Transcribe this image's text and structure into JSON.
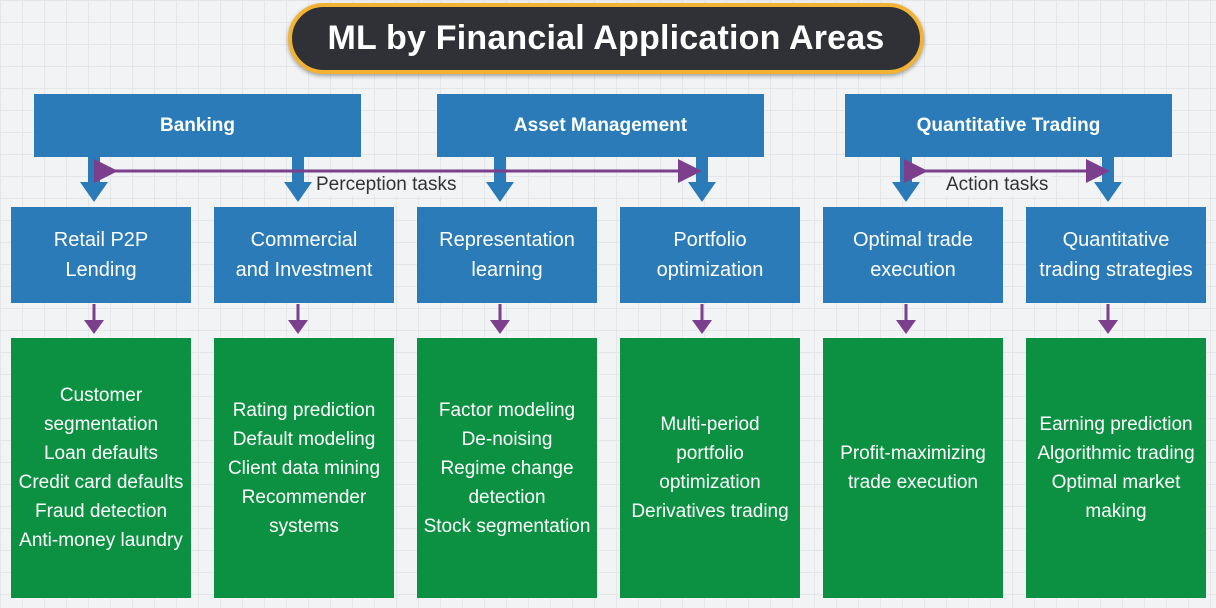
{
  "title": "ML by Financial Application Areas",
  "categories": [
    "Banking",
    "Asset Management",
    "Quantitative Trading"
  ],
  "task_labels": {
    "perception": "Perception tasks",
    "action": "Action tasks"
  },
  "subcategories": [
    [
      "Retail P2P",
      "Lending"
    ],
    [
      "Commercial",
      "and Investment"
    ],
    [
      "Representation",
      "learning"
    ],
    [
      "Portfolio",
      "optimization"
    ],
    [
      "Optimal trade",
      "execution"
    ],
    [
      "Quantitative",
      "trading strategies"
    ]
  ],
  "applications": [
    [
      "Customer",
      "segmentation",
      "Loan defaults",
      "Credit card defaults",
      "Fraud detection",
      "Anti-money laundry"
    ],
    [
      "Rating prediction",
      "Default modeling",
      "Client data mining",
      "Recommender",
      "systems"
    ],
    [
      "Factor modeling",
      "De-noising",
      "Regime change",
      "detection",
      "Stock segmentation"
    ],
    [
      "Multi-period",
      "portfolio",
      "optimization",
      "Derivatives trading"
    ],
    [
      "Profit-maximizing",
      "trade execution"
    ],
    [
      "Earning prediction",
      "Algorithmic trading",
      "Optimal market",
      "making"
    ]
  ],
  "colors": {
    "blue": "#2a7bb8",
    "green": "#0c9142",
    "purple": "#7b3f8e",
    "title_bg": "#2f3136",
    "title_border": "#f2b233"
  }
}
